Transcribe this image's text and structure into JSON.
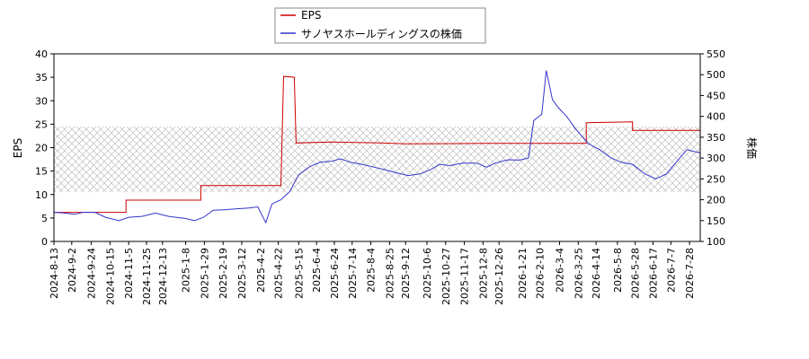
{
  "chart_data": {
    "type": "line",
    "legend": {
      "placement": "top-center",
      "entries": [
        {
          "name": "EPS",
          "color": "#cc0000"
        },
        {
          "name": "サノヤスホールディングスの株価",
          "color": "#3333cc"
        }
      ]
    },
    "ylabel_left": "EPS",
    "ylabel_right": "株価",
    "ylim_left": [
      0,
      40
    ],
    "ylim_right": [
      100,
      550
    ],
    "yticks_left": [
      "0",
      "5",
      "10",
      "15",
      "20",
      "25",
      "30",
      "35",
      "40"
    ],
    "yticks_right": [
      "100",
      "150",
      "200",
      "250",
      "300",
      "350",
      "400",
      "450",
      "500",
      "550"
    ],
    "x_range": [
      "2024-08-13",
      "2026-08-09"
    ],
    "x_ticks": [
      "2024-8-13",
      "2024-9-2",
      "2024-9-24",
      "2024-10-15",
      "2024-11-5",
      "2024-11-25",
      "2024-12-13",
      "2025-1-8",
      "2025-1-29",
      "2025-2-19",
      "2025-3-12",
      "2025-4-2",
      "2025-4-22",
      "2025-5-15",
      "2025-6-4",
      "2025-6-24",
      "2025-7-14",
      "2025-8-4",
      "2025-8-25",
      "2025-9-12",
      "2025-10-6",
      "2025-10-27",
      "2025-11-17",
      "2025-12-8",
      "2025-12-26",
      "2026-1-21",
      "2026-2-10",
      "2026-3-4",
      "2026-3-25",
      "2026-4-14",
      "2026-5-8",
      "2026-5-28",
      "2026-6-17",
      "2026-7-7",
      "2026-7-28"
    ],
    "shaded_band_left": [
      10.5,
      24.5
    ],
    "grid": false,
    "series": [
      {
        "name": "EPS",
        "axis": "left",
        "color": "#cc0000",
        "step": true,
        "points": [
          [
            "2024-08-13",
            6.2
          ],
          [
            "2024-11-02",
            6.2
          ],
          [
            "2024-11-02",
            8.8
          ],
          [
            "2025-01-25",
            8.8
          ],
          [
            "2025-01-25",
            11.9
          ],
          [
            "2025-04-25",
            11.9
          ],
          [
            "2025-04-28",
            35.2
          ],
          [
            "2025-05-10",
            35.0
          ],
          [
            "2025-05-12",
            21.0
          ],
          [
            "2025-06-20",
            21.2
          ],
          [
            "2025-08-15",
            21.0
          ],
          [
            "2025-09-12",
            20.8
          ],
          [
            "2025-12-10",
            20.9
          ],
          [
            "2026-03-28",
            20.9
          ],
          [
            "2026-04-03",
            20.9
          ],
          [
            "2026-04-03",
            25.3
          ],
          [
            "2026-05-25",
            25.5
          ],
          [
            "2026-05-25",
            23.7
          ],
          [
            "2026-08-09",
            23.7
          ]
        ]
      },
      {
        "name": "サノヤスホールディングスの株価",
        "axis": "right",
        "color": "#3333cc",
        "points": [
          [
            "2024-08-13",
            170
          ],
          [
            "2024-08-25",
            168
          ],
          [
            "2024-09-05",
            165
          ],
          [
            "2024-09-15",
            170
          ],
          [
            "2024-09-28",
            170
          ],
          [
            "2024-10-10",
            158
          ],
          [
            "2024-10-25",
            150
          ],
          [
            "2024-11-05",
            158
          ],
          [
            "2024-11-20",
            160
          ],
          [
            "2024-12-05",
            168
          ],
          [
            "2024-12-20",
            160
          ],
          [
            "2025-01-08",
            155
          ],
          [
            "2025-01-18",
            150
          ],
          [
            "2025-01-28",
            158
          ],
          [
            "2025-02-08",
            175
          ],
          [
            "2025-02-20",
            176
          ],
          [
            "2025-03-05",
            178
          ],
          [
            "2025-03-20",
            180
          ],
          [
            "2025-03-30",
            183
          ],
          [
            "2025-04-08",
            145
          ],
          [
            "2025-04-15",
            190
          ],
          [
            "2025-04-25",
            200
          ],
          [
            "2025-05-05",
            220
          ],
          [
            "2025-05-15",
            260
          ],
          [
            "2025-05-28",
            280
          ],
          [
            "2025-06-08",
            290
          ],
          [
            "2025-06-20",
            292
          ],
          [
            "2025-07-01",
            298
          ],
          [
            "2025-07-12",
            290
          ],
          [
            "2025-07-25",
            285
          ],
          [
            "2025-08-08",
            278
          ],
          [
            "2025-08-20",
            272
          ],
          [
            "2025-09-01",
            265
          ],
          [
            "2025-09-15",
            258
          ],
          [
            "2025-09-28",
            262
          ],
          [
            "2025-10-10",
            272
          ],
          [
            "2025-10-20",
            285
          ],
          [
            "2025-11-01",
            282
          ],
          [
            "2025-11-15",
            288
          ],
          [
            "2025-12-01",
            288
          ],
          [
            "2025-12-12",
            278
          ],
          [
            "2025-12-22",
            288
          ],
          [
            "2026-01-05",
            296
          ],
          [
            "2026-01-18",
            295
          ],
          [
            "2026-01-28",
            300
          ],
          [
            "2026-02-03",
            390
          ],
          [
            "2026-02-12",
            405
          ],
          [
            "2026-02-17",
            510
          ],
          [
            "2026-02-24",
            440
          ],
          [
            "2026-03-03",
            420
          ],
          [
            "2026-03-12",
            400
          ],
          [
            "2026-03-22",
            370
          ],
          [
            "2026-04-05",
            335
          ],
          [
            "2026-04-18",
            320
          ],
          [
            "2026-05-01",
            300
          ],
          [
            "2026-05-12",
            290
          ],
          [
            "2026-05-25",
            285
          ],
          [
            "2026-06-08",
            262
          ],
          [
            "2026-06-20",
            250
          ],
          [
            "2026-07-02",
            262
          ],
          [
            "2026-07-15",
            295
          ],
          [
            "2026-07-25",
            320
          ],
          [
            "2026-08-09",
            312
          ]
        ]
      }
    ]
  }
}
